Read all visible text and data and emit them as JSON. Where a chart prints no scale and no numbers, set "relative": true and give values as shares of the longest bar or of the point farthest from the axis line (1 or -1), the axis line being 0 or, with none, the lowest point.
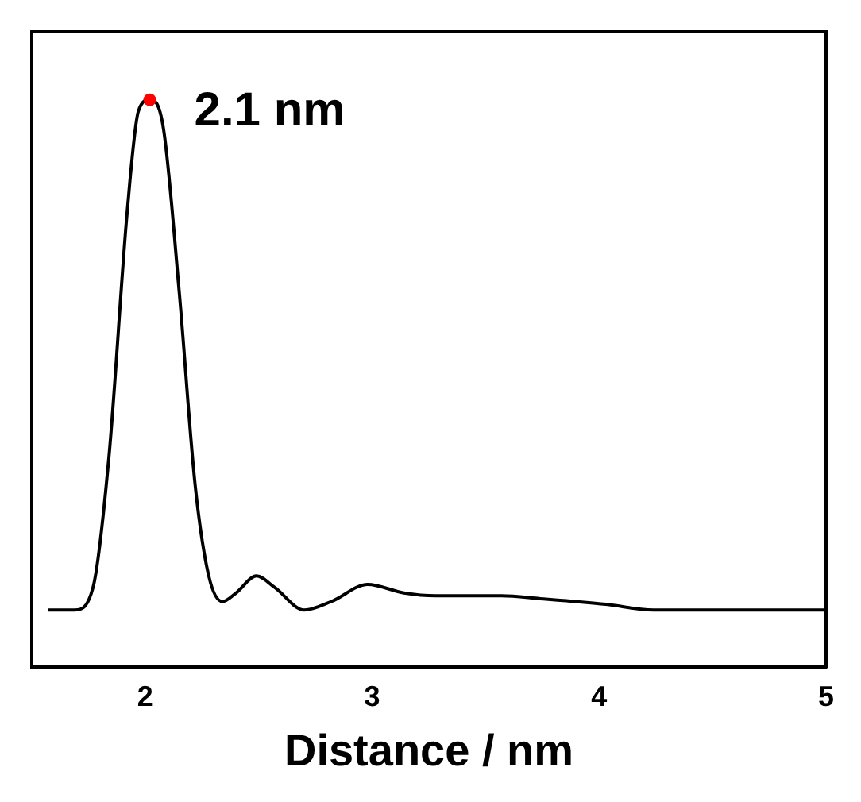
{
  "chart_data": {
    "type": "line",
    "xlabel": "Distance / nm",
    "relative": true,
    "tick_labels": "x",
    "xlim": [
      1.5,
      5
    ],
    "xticks": [
      2,
      3,
      4,
      5
    ],
    "grid": false,
    "legend": false,
    "series": [
      {
        "color": "#000000",
        "x": [
          1.57,
          1.69,
          1.77,
          1.84,
          1.92,
          1.97,
          2.02,
          2.08,
          2.15,
          2.22,
          2.28,
          2.34,
          2.4,
          2.49,
          2.57,
          2.7,
          2.82,
          2.98,
          3.14,
          3.28,
          3.57,
          3.74,
          4.03,
          4.24,
          5.0
        ],
        "values": [
          0.1,
          0.1,
          0.14,
          0.37,
          0.8,
          0.98,
          1,
          0.95,
          0.66,
          0.32,
          0.16,
          0.115,
          0.13,
          0.16,
          0.14,
          0.1,
          0.115,
          0.145,
          0.13,
          0.125,
          0.125,
          0.12,
          0.11,
          0.1,
          0.1
        ]
      },
      {
        "type": "scatter",
        "marker": "circle",
        "color": "#ff0000",
        "x": [
          2.02
        ],
        "values": [
          1
        ]
      }
    ],
    "annotations": [
      {
        "text": "2.1 nm",
        "x": 2.02,
        "y": 1
      }
    ]
  }
}
